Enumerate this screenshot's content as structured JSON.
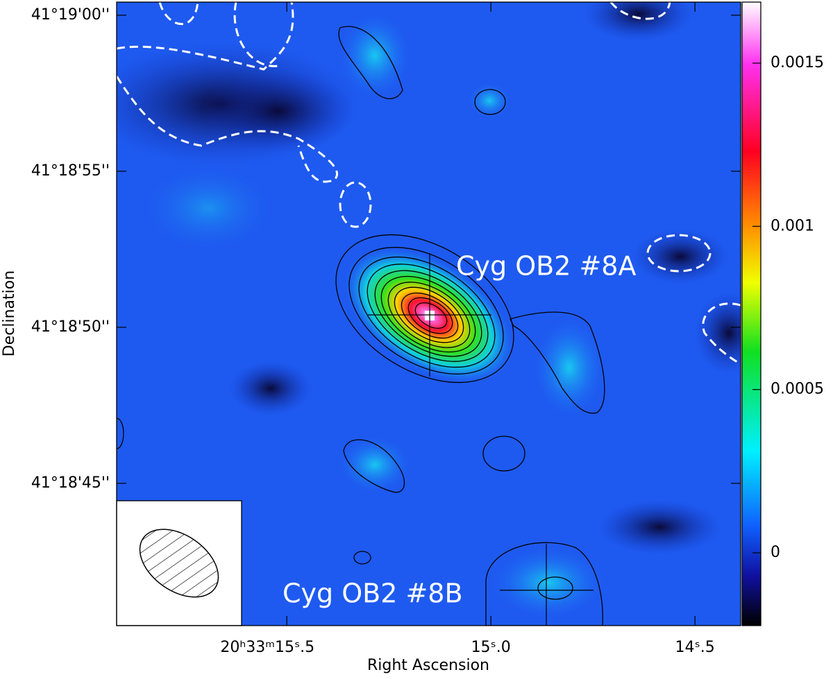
{
  "chart_data": {
    "type": "image",
    "x_label": "Right Ascension",
    "y_label": "Declination",
    "xlim": [
      15.917,
      14.388
    ],
    "ylim": [
      40.44,
      60.42
    ],
    "xticks": [
      {
        "value": 15.5,
        "label": "20ʰ33ᵐ15ˢ.5"
      },
      {
        "value": 15.0,
        "label": "15ˢ.0"
      },
      {
        "value": 14.5,
        "label": "14ˢ.5"
      }
    ],
    "yticks": [
      {
        "value": 45,
        "label": "41°18'45''"
      },
      {
        "value": 50,
        "label": "41°18'50''"
      },
      {
        "value": 55,
        "label": "41°18'55''"
      },
      {
        "value": 60,
        "label": "41°19'00''"
      }
    ],
    "colorbar": {
      "lim": [
        -0.000223,
        0.001687
      ],
      "ticks": [
        0,
        0.0005,
        0.001,
        0.0015
      ]
    },
    "annotations": [
      "Cyg OB2 #8A",
      "Cyg OB2 #8B"
    ]
  }
}
